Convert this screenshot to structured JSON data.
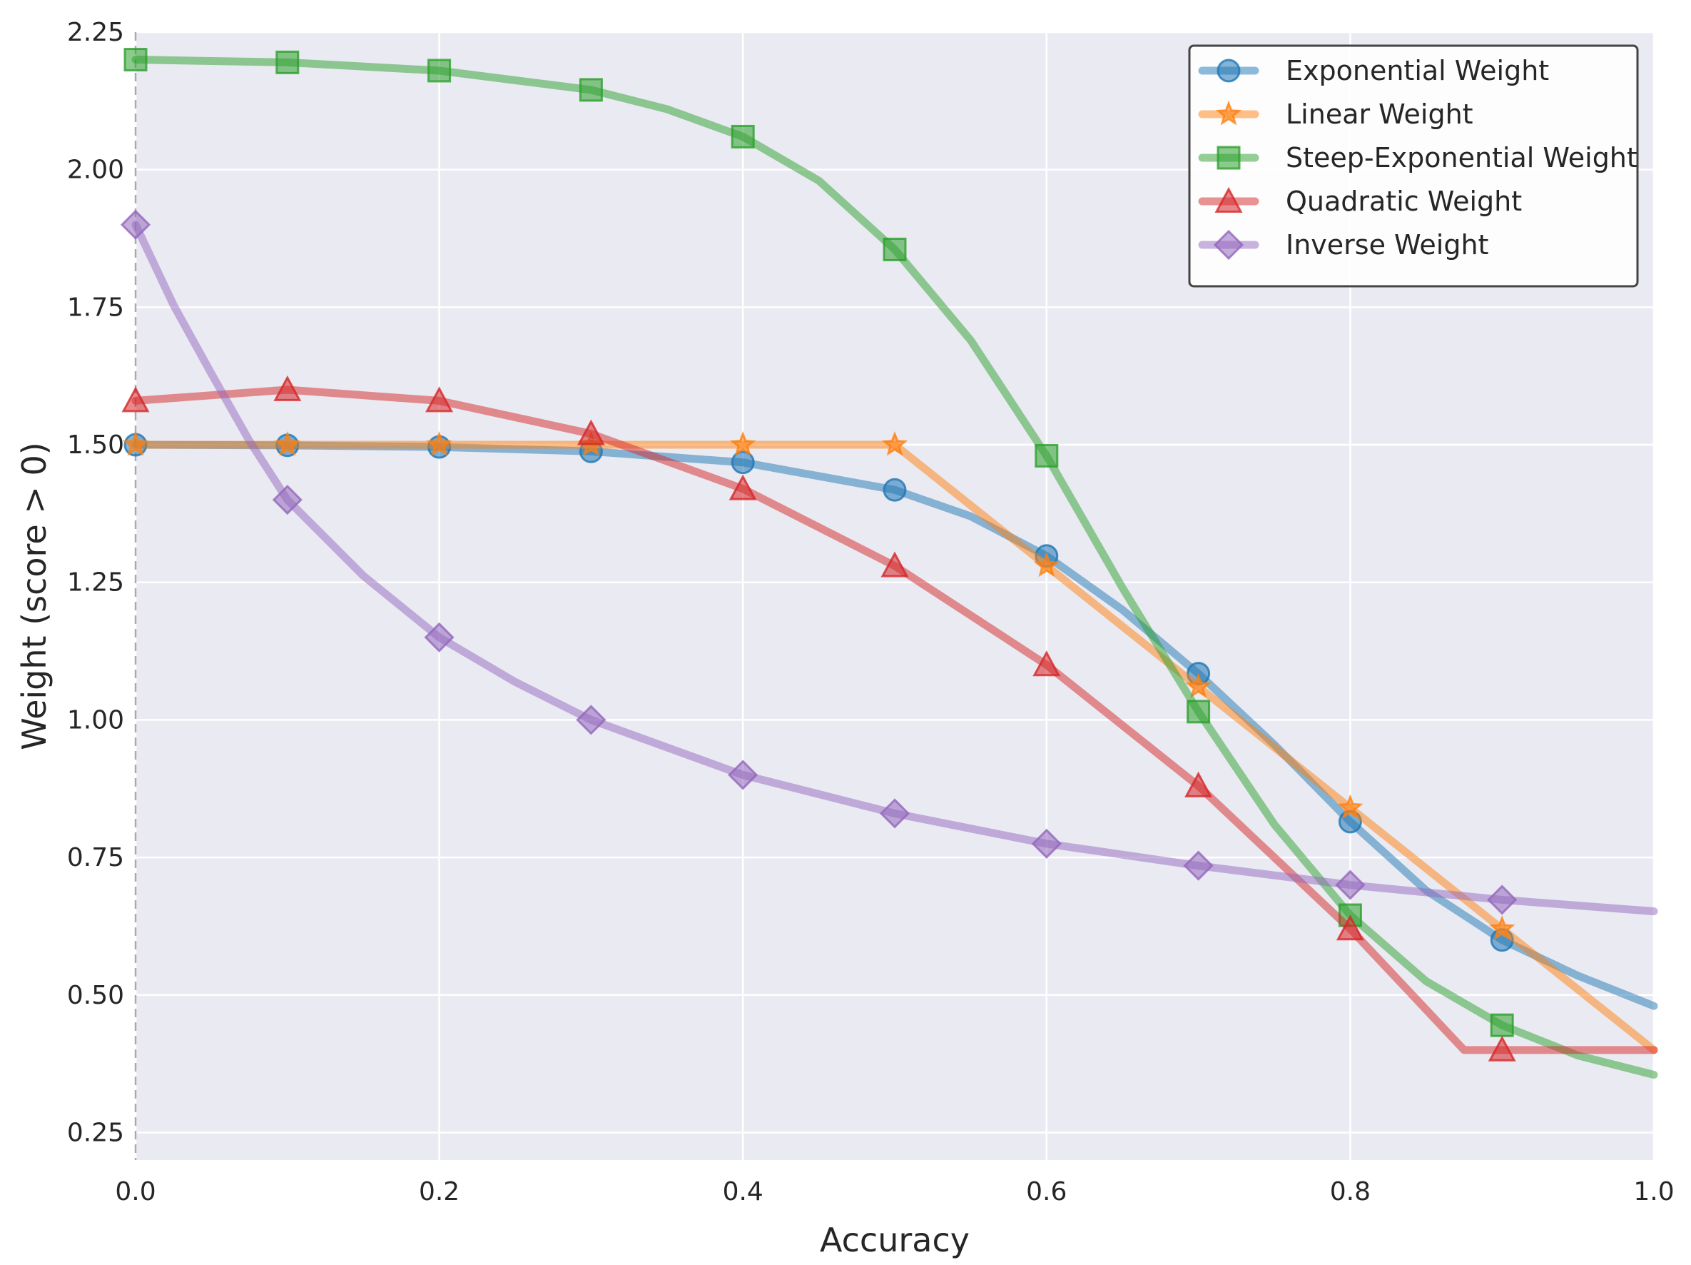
{
  "chart_data": {
    "type": "line",
    "title": "",
    "xlabel": "Accuracy",
    "ylabel": "Weight (score > 0)",
    "xlim": [
      0,
      1
    ],
    "ylim": [
      0.2,
      2.25
    ],
    "x_ticks": [
      "0.0",
      "0.2",
      "0.4",
      "0.6",
      "0.8",
      "1.0"
    ],
    "y_ticks": [
      "0.25",
      "0.50",
      "0.75",
      "1.00",
      "1.25",
      "1.50",
      "1.75",
      "2.00",
      "2.25"
    ],
    "grid": true,
    "legend_position": "top-right",
    "background": "#eaeaf2",
    "reference_line": {
      "x": 0,
      "style": "dashed",
      "color": "#aaaaaa"
    },
    "marker_x": [
      0,
      0.1,
      0.2,
      0.3,
      0.4,
      0.5,
      0.6,
      0.7,
      0.8,
      0.9
    ],
    "series": [
      {
        "name": "Exponential Weight",
        "color": "#1f77b4",
        "marker": "circle",
        "x": [
          0,
          0.1,
          0.2,
          0.3,
          0.4,
          0.5,
          0.55,
          0.6,
          0.65,
          0.7,
          0.75,
          0.8,
          0.85,
          0.9,
          0.95,
          1.0
        ],
        "y": [
          1.5,
          1.499,
          1.496,
          1.488,
          1.468,
          1.418,
          1.37,
          1.298,
          1.2,
          1.084,
          0.955,
          0.815,
          0.69,
          0.6,
          0.535,
          0.48
        ]
      },
      {
        "name": "Linear Weight",
        "color": "#ff7f0e",
        "marker": "star",
        "x": [
          0,
          0.1,
          0.2,
          0.3,
          0.4,
          0.5,
          0.6,
          0.7,
          0.8,
          0.9,
          1.0
        ],
        "y": [
          1.5,
          1.5,
          1.5,
          1.5,
          1.5,
          1.5,
          1.28,
          1.06,
          0.84,
          0.62,
          0.4
        ]
      },
      {
        "name": "Steep-Exponential Weight",
        "color": "#2ca02c",
        "marker": "square",
        "x": [
          0,
          0.1,
          0.2,
          0.3,
          0.35,
          0.4,
          0.45,
          0.5,
          0.55,
          0.6,
          0.65,
          0.7,
          0.75,
          0.8,
          0.85,
          0.9,
          0.95,
          1.0
        ],
        "y": [
          2.2,
          2.195,
          2.18,
          2.145,
          2.11,
          2.06,
          1.98,
          1.855,
          1.69,
          1.48,
          1.24,
          1.015,
          0.81,
          0.645,
          0.525,
          0.445,
          0.39,
          0.355
        ]
      },
      {
        "name": "Quadratic Weight",
        "color": "#d62728",
        "marker": "triangle",
        "x": [
          0,
          0.1,
          0.2,
          0.3,
          0.4,
          0.5,
          0.6,
          0.7,
          0.8,
          0.875,
          0.9,
          1.0
        ],
        "y": [
          1.58,
          1.6,
          1.58,
          1.52,
          1.42,
          1.28,
          1.1,
          0.88,
          0.62,
          0.4,
          0.4,
          0.4
        ]
      },
      {
        "name": "Inverse Weight",
        "color": "#9467bd",
        "marker": "diamond",
        "x": [
          0,
          0.025,
          0.05,
          0.075,
          0.1,
          0.15,
          0.2,
          0.25,
          0.3,
          0.4,
          0.5,
          0.6,
          0.7,
          0.8,
          0.9,
          1.0
        ],
        "y": [
          1.9,
          1.754,
          1.629,
          1.507,
          1.4,
          1.262,
          1.15,
          1.069,
          1.0,
          0.9,
          0.83,
          0.775,
          0.735,
          0.7,
          0.673,
          0.652
        ]
      }
    ]
  }
}
